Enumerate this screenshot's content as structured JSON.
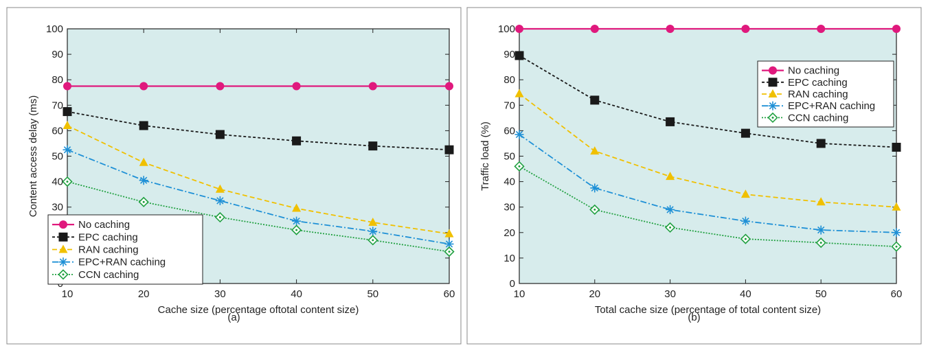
{
  "chart_data": [
    {
      "type": "line",
      "caption": "(a)",
      "xlabel": "Cache size (percentage oftotal content size)",
      "ylabel": "Content access delay (ms)",
      "x": [
        10,
        20,
        30,
        40,
        50,
        60
      ],
      "xlim": [
        10,
        60
      ],
      "ylim": [
        0,
        100
      ],
      "xticks": [
        "10",
        "20",
        "30",
        "40",
        "50",
        "60"
      ],
      "yticks": [
        "0",
        "10",
        "20",
        "30",
        "40",
        "50",
        "60",
        "70",
        "80",
        "90",
        "100"
      ],
      "legend_position": "bottom-left",
      "series": [
        {
          "name": "No caching",
          "values": [
            77.5,
            77.5,
            77.5,
            77.5,
            77.5,
            77.5
          ]
        },
        {
          "name": "EPC caching",
          "values": [
            67.5,
            62,
            58.5,
            56,
            54,
            52.5
          ]
        },
        {
          "name": "RAN caching",
          "values": [
            62,
            47.5,
            37,
            29.5,
            24,
            19.5
          ]
        },
        {
          "name": "EPC+RAN caching",
          "values": [
            52.5,
            40.5,
            32.5,
            24.5,
            20.5,
            15.5
          ]
        },
        {
          "name": "CCN caching",
          "values": [
            40,
            32,
            26,
            21,
            17,
            12.5
          ]
        }
      ]
    },
    {
      "type": "line",
      "caption": "(b)",
      "xlabel": "Total cache size (percentage of total content size)",
      "ylabel": "Traffic load (%)",
      "x": [
        10,
        20,
        30,
        40,
        50,
        60
      ],
      "xlim": [
        10,
        60
      ],
      "ylim": [
        0,
        100
      ],
      "xticks": [
        "10",
        "20",
        "30",
        "40",
        "50",
        "60"
      ],
      "yticks": [
        "0",
        "10",
        "20",
        "30",
        "40",
        "50",
        "60",
        "70",
        "80",
        "90",
        "100"
      ],
      "legend_position": "top-right",
      "series": [
        {
          "name": "No caching",
          "values": [
            100,
            100,
            100,
            100,
            100,
            100
          ]
        },
        {
          "name": "EPC caching",
          "values": [
            89.5,
            72,
            63.5,
            59,
            55,
            53.5
          ]
        },
        {
          "name": "RAN caching",
          "values": [
            74.5,
            52,
            42,
            35,
            32,
            30
          ]
        },
        {
          "name": "EPC+RAN caching",
          "values": [
            58.5,
            37.5,
            29,
            24.5,
            21,
            20
          ]
        },
        {
          "name": "CCN caching",
          "values": [
            46,
            29,
            22,
            17.5,
            16,
            14.5
          ]
        }
      ]
    }
  ],
  "style": {
    "plot_background": "#d7ecec",
    "frame_color": "#222222",
    "series_colors": [
      "#e0197d",
      "#1a1a1a",
      "#f0c000",
      "#1e90d6",
      "#20a040"
    ],
    "series_markers": [
      "circle",
      "square",
      "triangle",
      "asterisk",
      "diamond-dot"
    ],
    "series_dashes": [
      "none",
      "4,3",
      "7,4",
      "9,3,2,3",
      "2,2"
    ]
  }
}
